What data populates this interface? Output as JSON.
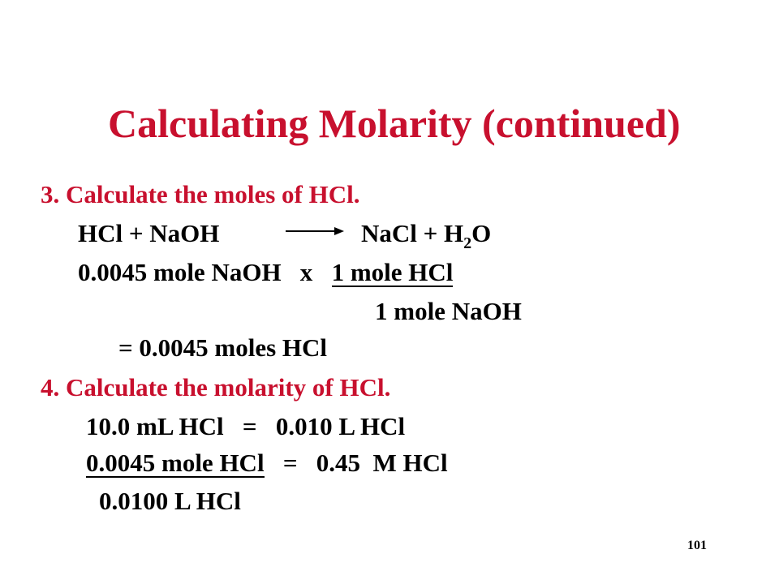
{
  "slide": {
    "title": "Calculating Molarity (continued)",
    "step3": "3.  Calculate the moles of HCl.",
    "equation": {
      "reactants": "HCl  +  NaOH",
      "products_pre": "NaCl  +  H",
      "subscript": "2",
      "products_post": "O"
    },
    "calc1": {
      "lead": "0.0045 mole NaOH   x   ",
      "numerator": "1 mole HCl",
      "denominator": "1 mole NaOH",
      "result": "=  0.0045 moles HCl"
    },
    "step4": "4.  Calculate the molarity of HCl.",
    "calc2": {
      "conversion": "10.0 mL HCl   =   0.010 L HCl",
      "numerator": "0.0045 mole HCl",
      "rest": "   =   0.45  M HCl",
      "denominator": "0.0100 L HCl"
    },
    "page_number": "101",
    "colors": {
      "heading": "#c8102e",
      "body": "#000000",
      "background": "#ffffff"
    }
  }
}
